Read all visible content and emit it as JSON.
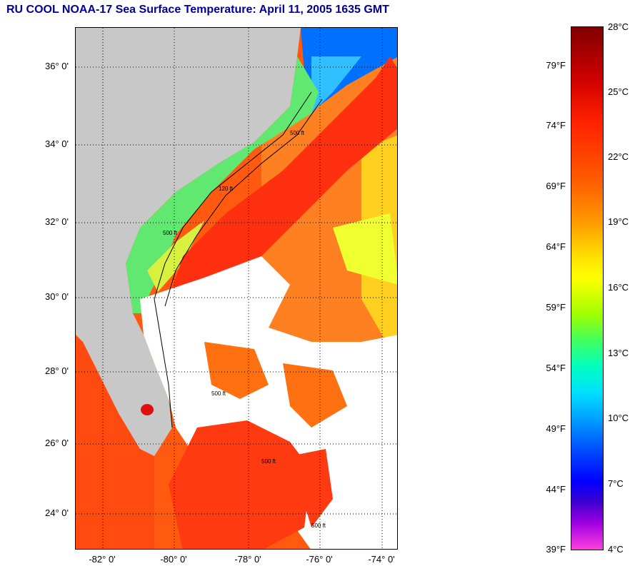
{
  "title": "RU COOL  NOAA-17  Sea Surface Temperature:  April 11, 2005 1635 GMT",
  "map": {
    "lat_labels": [
      "36° 0'",
      "34° 0'",
      "32° 0'",
      "30° 0'",
      "28° 0'",
      "26° 0'",
      "24° 0'"
    ],
    "lon_labels": [
      "-82° 0'",
      "-80° 0'",
      "-78° 0'",
      "-76° 0'",
      "-74° 0'"
    ],
    "contours": [
      "500 ft",
      "120 ft",
      "500 ft",
      "500 ft",
      "500 ft",
      "500 ft"
    ],
    "colors": {
      "land": "#c8c8c8",
      "cloud": "#ffffff",
      "gulf_stream": "#ff3010",
      "shelf_water": "#60e870",
      "offshore_warm": "#ff7010",
      "cold_north": "#0060ff"
    }
  },
  "colorbar": {
    "celsius": [
      "28°C",
      "25°C",
      "22°C",
      "19°C",
      "16°C",
      "13°C",
      "10°C",
      "7°C",
      "4°C"
    ],
    "fahrenheit": [
      "79°F",
      "74°F",
      "69°F",
      "64°F",
      "59°F",
      "54°F",
      "49°F",
      "44°F",
      "39°F"
    ]
  }
}
